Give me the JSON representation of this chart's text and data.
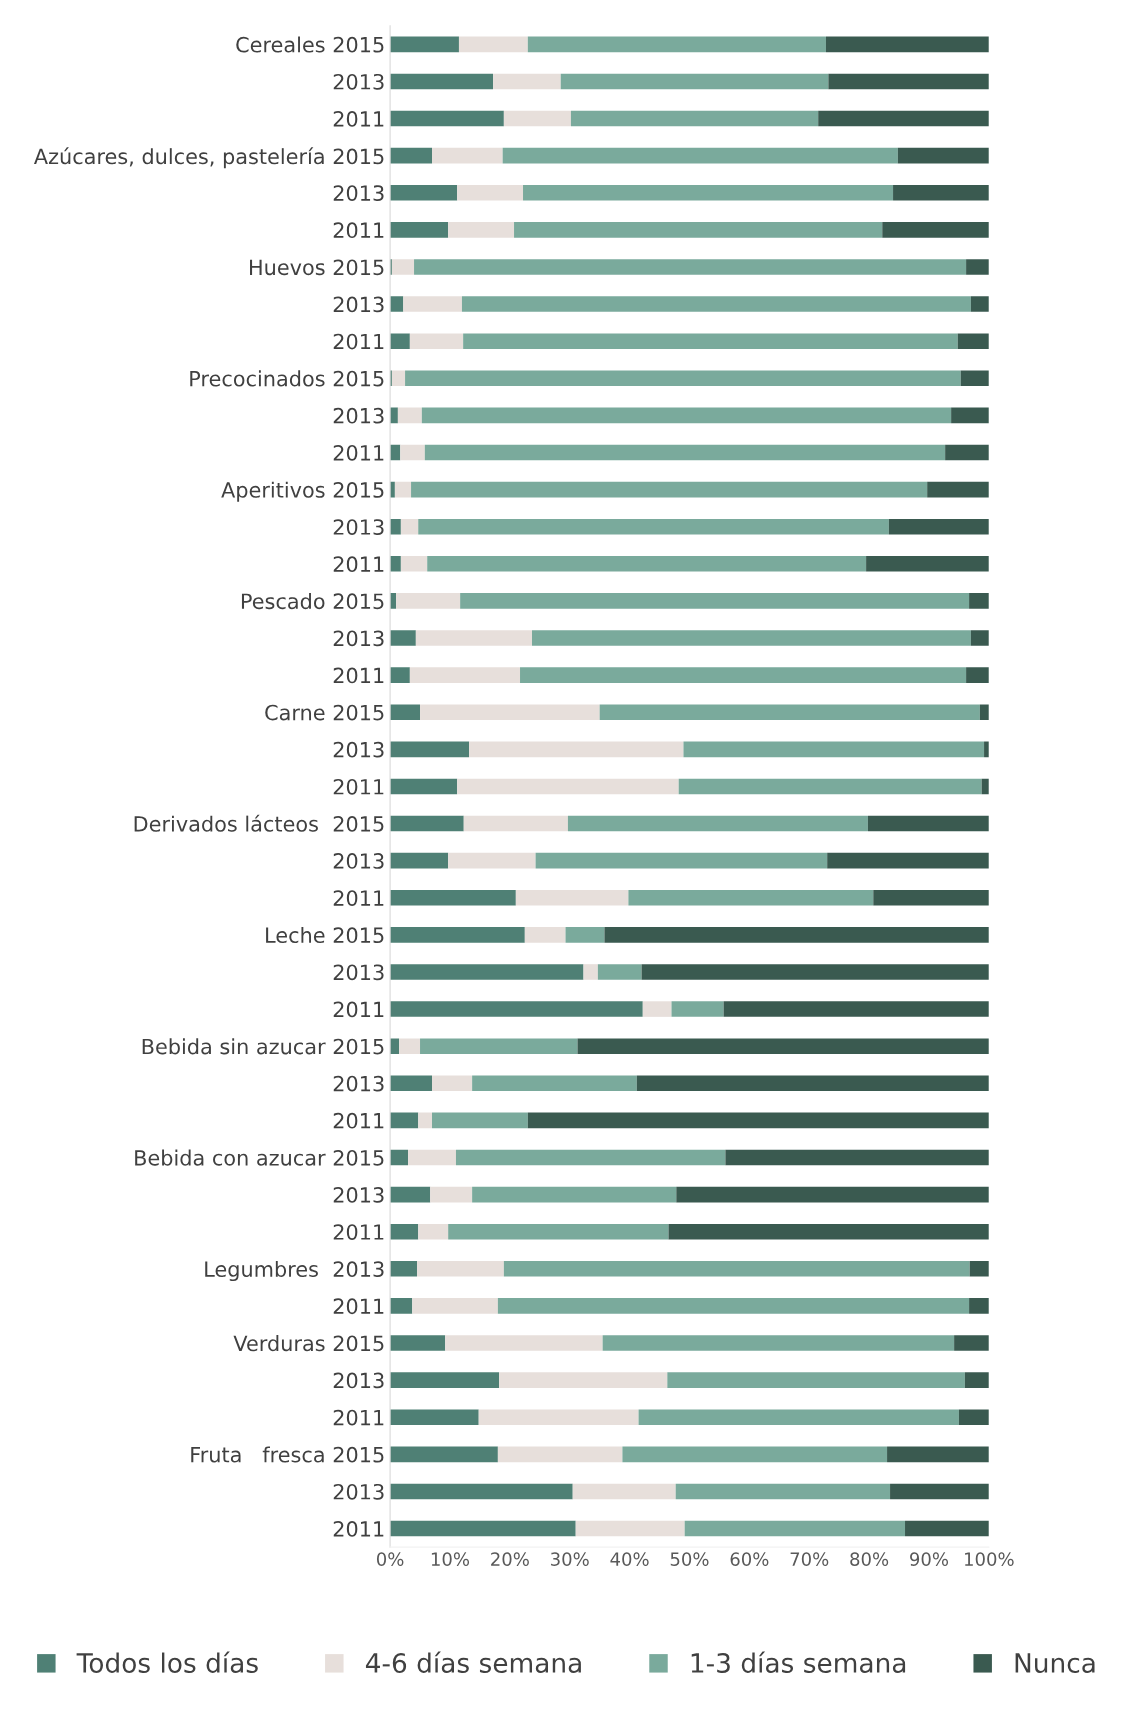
{
  "chart_data": {
    "type": "bar",
    "orientation": "horizontal",
    "stacked": true,
    "categories": [
      "Cereales 2015",
      "2013",
      "2011",
      "Azúcares, dulces, pastelería 2015",
      "2013",
      "2011",
      "Huevos 2015",
      "2013",
      "2011",
      "Precocinados 2015",
      "2013",
      "2011",
      "Aperitivos 2015",
      "2013",
      "2011",
      "Pescado 2015",
      "2013",
      "2011",
      "Carne 2015",
      "2013",
      "2011",
      "Derivados lácteos  2015",
      "2013",
      "2011",
      "Leche 2015",
      "2013",
      "2011",
      "Bebida sin azucar 2015",
      "2013",
      "2011",
      "Bebida con azucar 2015",
      "2013",
      "2011",
      "Legumbres  2013",
      "2011",
      "Verduras 2015",
      "2013",
      "2011",
      "Fruta   fresca 2015",
      "2013",
      "2011"
    ],
    "series": [
      {
        "name": "Todos los días",
        "color": "#4f8075",
        "values": [
          11.5,
          17.2,
          19,
          7,
          11.2,
          9.7,
          0.3,
          2.2,
          3.3,
          0.3,
          1.3,
          1.7,
          0.8,
          1.8,
          1.8,
          1,
          4.3,
          3.3,
          5,
          13.2,
          11.2,
          12.3,
          9.7,
          21,
          22.5,
          32.3,
          42.2,
          1.5,
          7,
          4.7,
          3,
          6.7,
          4.7,
          4.5,
          3.7,
          9.2,
          18.2,
          14.8,
          18,
          30.5,
          31
        ]
      },
      {
        "name": "4-6 días semana",
        "color": "#e7dfdb",
        "values": [
          11.5,
          11.3,
          11.2,
          11.8,
          11,
          11,
          3.7,
          9.8,
          8.9,
          2.2,
          4,
          4.1,
          2.7,
          2.9,
          4.4,
          10.7,
          19.4,
          18.4,
          30,
          35.8,
          37,
          17.4,
          14.6,
          18.8,
          6.8,
          2.4,
          4.8,
          3.5,
          6.7,
          2.3,
          8,
          7,
          5,
          14.5,
          14.3,
          26.3,
          28.1,
          26.7,
          20.8,
          17.2,
          18.2
        ]
      },
      {
        "name": "1-3 días semana",
        "color": "#7aaa9c",
        "values": [
          49.8,
          44.7,
          41.3,
          66,
          61.8,
          61.5,
          92.2,
          85,
          82.6,
          92.8,
          88.4,
          86.9,
          86.2,
          78.6,
          73.3,
          85,
          73.3,
          74.5,
          63.5,
          50.2,
          50.6,
          50.1,
          48.7,
          40.9,
          6.5,
          7.3,
          8.7,
          26.3,
          27.5,
          16,
          45,
          34.1,
          36.8,
          77.8,
          78.7,
          58.7,
          49.7,
          53.5,
          44.2,
          35.8,
          36.8
        ]
      },
      {
        "name": "Nunca",
        "color": "#3a5a50",
        "values": [
          27.2,
          26.8,
          28.5,
          15.2,
          16,
          17.8,
          3.8,
          3,
          5.2,
          4.7,
          6.3,
          7.3,
          10.3,
          16.7,
          20.5,
          3.3,
          3,
          3.8,
          1.5,
          0.8,
          1.2,
          20.2,
          27,
          19.3,
          64.2,
          58,
          44.3,
          68.7,
          58.8,
          77,
          44,
          52.2,
          53.5,
          3.2,
          3.3,
          5.8,
          4,
          5,
          17,
          16.5,
          14
        ]
      }
    ],
    "xlim": [
      0,
      100
    ],
    "xticks": [
      {
        "value": 0,
        "label": "0%"
      },
      {
        "value": 10,
        "label": "10%"
      },
      {
        "value": 20,
        "label": "20%"
      },
      {
        "value": 30,
        "label": "30%"
      },
      {
        "value": 40,
        "label": "40%"
      },
      {
        "value": 50,
        "label": "50%"
      },
      {
        "value": 60,
        "label": "60%"
      },
      {
        "value": 70,
        "label": "70%"
      },
      {
        "value": 80,
        "label": "80%"
      },
      {
        "value": 90,
        "label": "90%"
      },
      {
        "value": 100,
        "label": "100%"
      }
    ],
    "grid": false,
    "legend": "bottom"
  }
}
